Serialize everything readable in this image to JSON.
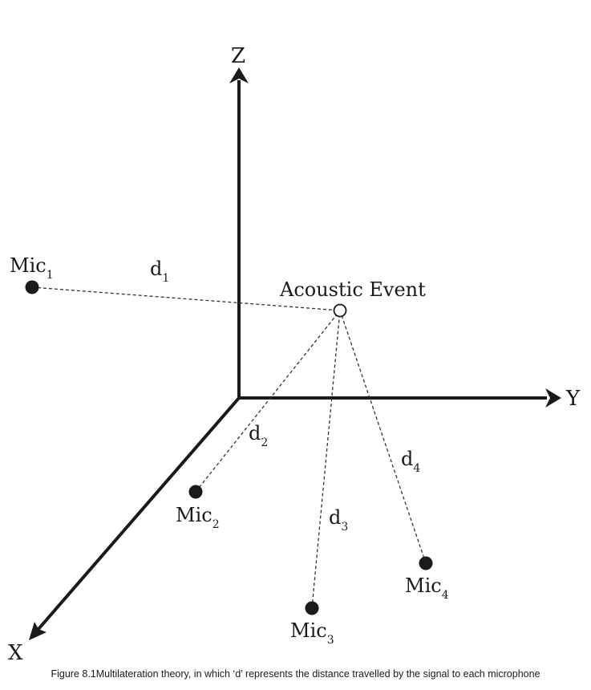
{
  "axes": {
    "x_label": "X",
    "y_label": "Y",
    "z_label": "Z"
  },
  "event": {
    "label": "Acoustic Event"
  },
  "mics": [
    {
      "name": "Mic",
      "sub": "1"
    },
    {
      "name": "Mic",
      "sub": "2"
    },
    {
      "name": "Mic",
      "sub": "3"
    },
    {
      "name": "Mic",
      "sub": "4"
    }
  ],
  "distances": [
    {
      "name": "d",
      "sub": "1"
    },
    {
      "name": "d",
      "sub": "2"
    },
    {
      "name": "d",
      "sub": "3"
    },
    {
      "name": "d",
      "sub": "4"
    }
  ],
  "caption": "Figure 8.1Multilateration theory, in which ‘d’ represents the distance travelled by the signal to each microphone"
}
